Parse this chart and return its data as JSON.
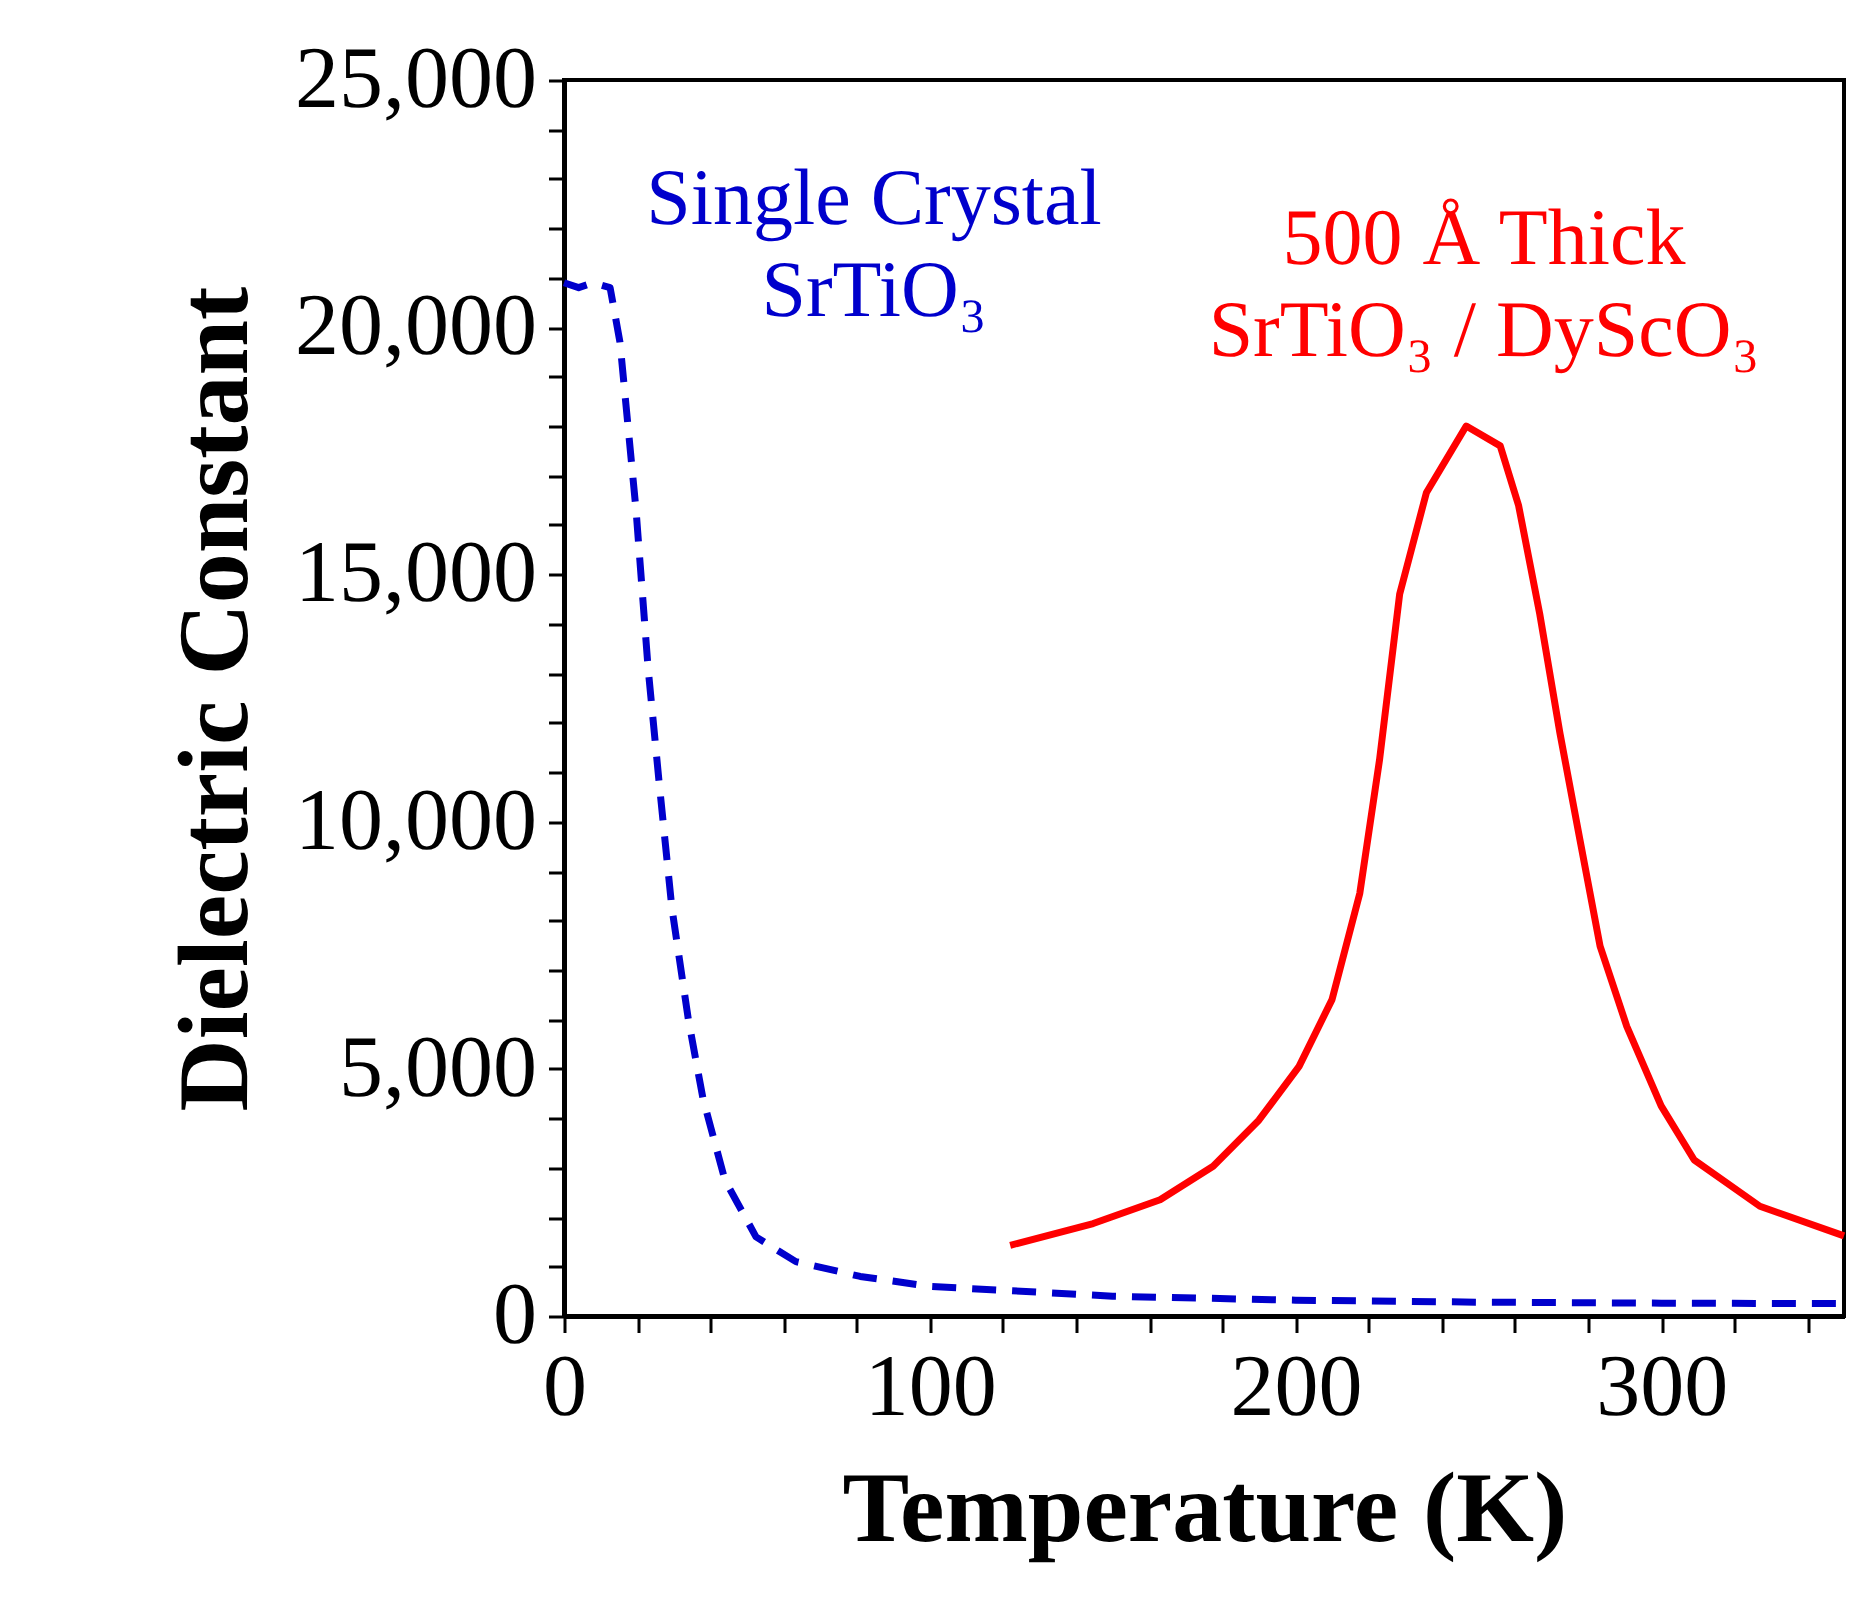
{
  "chart_data": {
    "type": "line",
    "xlabel": "Temperature (K)",
    "ylabel": "Dielectric Constant",
    "annotations": [
      "Single Crystal\nSrTiO₃",
      "500 Å Thick\nSrTiO₃ / DyScO₃"
    ],
    "xlim": [
      0,
      350
    ],
    "ylim": [
      0,
      25000
    ],
    "xticks": [
      0,
      {
        "value": 20,
        "label": null
      },
      {
        "value": 40,
        "label": null
      },
      {
        "value": 60,
        "label": null
      },
      {
        "value": 80,
        "label": null
      },
      100,
      {
        "value": 120,
        "label": null
      },
      {
        "value": 140,
        "label": null
      },
      {
        "value": 160,
        "label": null
      },
      {
        "value": 180,
        "label": null
      },
      200,
      {
        "value": 220,
        "label": null
      },
      {
        "value": 240,
        "label": null
      },
      {
        "value": 260,
        "label": null
      },
      {
        "value": 280,
        "label": null
      },
      300,
      {
        "value": 320,
        "label": null
      },
      {
        "value": 340,
        "label": null
      }
    ],
    "yticks": [
      {
        "value": 0,
        "label": "0"
      },
      {
        "value": 1000,
        "label": null
      },
      {
        "value": 2000,
        "label": null
      },
      {
        "value": 3000,
        "label": null
      },
      {
        "value": 4000,
        "label": null
      },
      {
        "value": 5000,
        "label": "5,000"
      },
      {
        "value": 6000,
        "label": null
      },
      {
        "value": 7000,
        "label": null
      },
      {
        "value": 8000,
        "label": null
      },
      {
        "value": 9000,
        "label": null
      },
      {
        "value": 10000,
        "label": "10,000"
      },
      {
        "value": 11000,
        "label": null
      },
      {
        "value": 12000,
        "label": null
      },
      {
        "value": 13000,
        "label": null
      },
      {
        "value": 14000,
        "label": null
      },
      {
        "value": 15000,
        "label": "15,000"
      },
      {
        "value": 16000,
        "label": null
      },
      {
        "value": 17000,
        "label": null
      },
      {
        "value": 18000,
        "label": null
      },
      {
        "value": 19000,
        "label": null
      },
      {
        "value": 20000,
        "label": "20,000"
      },
      {
        "value": 21000,
        "label": null
      },
      {
        "value": 22000,
        "label": null
      },
      {
        "value": 23000,
        "label": null
      },
      {
        "value": 24000,
        "label": null
      },
      {
        "value": 25000,
        "label": "25,000"
      }
    ],
    "grid": false,
    "series": [
      {
        "color": "#0000cc",
        "line_style": "dashed",
        "x": [
          0,
          4,
          8,
          12.6,
          15.3,
          19.7,
          23,
          26,
          29.5,
          34,
          38,
          44,
          52.5,
          63.4,
          81,
          100,
          150,
          200,
          250,
          300,
          350
        ],
        "values": [
          20900,
          20800,
          20900,
          20800,
          19700,
          16300,
          13100,
          10800,
          8250,
          6000,
          4400,
          2750,
          1600,
          1100,
          800,
          600,
          400,
          320,
          280,
          260,
          250
        ]
      },
      {
        "color": "#ff0000",
        "line_style": "solid",
        "x": [
          122,
          144.7,
          163,
          177.5,
          190,
          201,
          210,
          217.6,
          223,
          228.5,
          235.8,
          246.7,
          256,
          261,
          266.8,
          272.3,
          277.8,
          283.3,
          290.6,
          300,
          309,
          327,
          350
        ],
        "values": [
          1430,
          1870,
          2350,
          3030,
          3960,
          5050,
          6400,
          8550,
          11250,
          14600,
          16650,
          18000,
          17600,
          16400,
          14200,
          11800,
          9630,
          7480,
          5860,
          4250,
          3160,
          2220,
          1620
        ]
      }
    ]
  }
}
